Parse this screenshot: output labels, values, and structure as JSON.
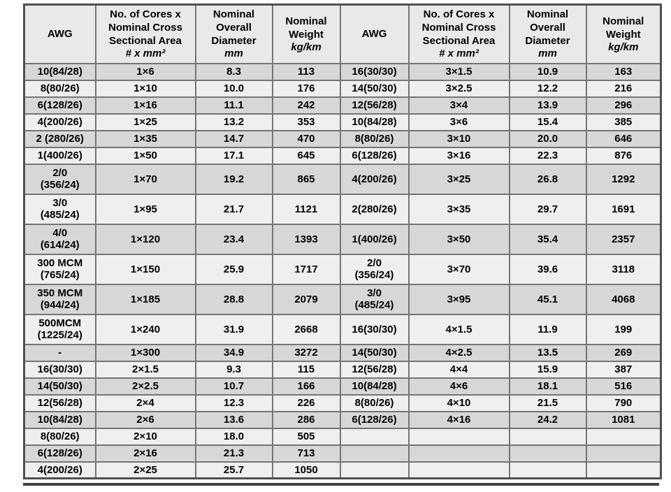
{
  "colors": {
    "header_bg": "#e9e9e9",
    "row_odd": "#d7d7d7",
    "row_even": "#efefef",
    "grid_line": "#757575",
    "outer_border": "#4f4f4f",
    "bottom_rule": "#424242",
    "text": "#000000"
  },
  "table": {
    "headers": [
      {
        "title": "AWG",
        "unit": ""
      },
      {
        "title": "No. of Cores x\nNominal Cross\nSectional Area",
        "unit": "# x mm²"
      },
      {
        "title": "Nominal\nOverall\nDiameter",
        "unit": "mm"
      },
      {
        "title": "Nominal\nWeight",
        "unit": "kg/km"
      },
      {
        "title": "AWG",
        "unit": ""
      },
      {
        "title": "No. of Cores x\nNominal Cross\nSectional Area",
        "unit": "# x mm²"
      },
      {
        "title": "Nominal\nOverall\nDiameter",
        "unit": "mm"
      },
      {
        "title": "Nominal\nWeight",
        "unit": "kg/km"
      }
    ],
    "rows": [
      {
        "tall": false,
        "cells": [
          "10(84/28)",
          "1×6",
          "8.3",
          "113",
          "16(30/30)",
          "3×1.5",
          "10.9",
          "163"
        ]
      },
      {
        "tall": false,
        "cells": [
          "8(80/26)",
          "1×10",
          "10.0",
          "176",
          "14(50/30)",
          "3×2.5",
          "12.2",
          "216"
        ]
      },
      {
        "tall": false,
        "cells": [
          "6(128/26)",
          "1×16",
          "11.1",
          "242",
          "12(56/28)",
          "3×4",
          "13.9",
          "296"
        ]
      },
      {
        "tall": false,
        "cells": [
          "4(200/26)",
          "1×25",
          "13.2",
          "353",
          "10(84/28)",
          "3×6",
          "15.4",
          "385"
        ]
      },
      {
        "tall": false,
        "cells": [
          "2 (280/26)",
          "1×35",
          "14.7",
          "470",
          "8(80/26)",
          "3×10",
          "20.0",
          "646"
        ]
      },
      {
        "tall": false,
        "cells": [
          "1(400/26)",
          "1×50",
          "17.1",
          "645",
          "6(128/26)",
          "3×16",
          "22.3",
          "876"
        ]
      },
      {
        "tall": true,
        "cells": [
          "2/0\n(356/24)",
          "1×70",
          "19.2",
          "865",
          "4(200/26)",
          "3×25",
          "26.8",
          "1292"
        ]
      },
      {
        "tall": true,
        "cells": [
          "3/0\n(485/24)",
          "1×95",
          "21.7",
          "1121",
          "2(280/26)",
          "3×35",
          "29.7",
          "1691"
        ]
      },
      {
        "tall": true,
        "cells": [
          "4/0\n(614/24)",
          "1×120",
          "23.4",
          "1393",
          "1(400/26)",
          "3×50",
          "35.4",
          "2357"
        ]
      },
      {
        "tall": true,
        "cells": [
          "300 MCM\n(765/24)",
          "1×150",
          "25.9",
          "1717",
          "2/0\n(356/24)",
          "3×70",
          "39.6",
          "3118"
        ]
      },
      {
        "tall": true,
        "cells": [
          "350 MCM\n(944/24)",
          "1×185",
          "28.8",
          "2079",
          "3/0\n(485/24)",
          "3×95",
          "45.1",
          "4068"
        ]
      },
      {
        "tall": true,
        "cells": [
          "500MCM\n(1225/24)",
          "1×240",
          "31.9",
          "2668",
          "16(30/30)",
          "4×1.5",
          "11.9",
          "199"
        ]
      },
      {
        "tall": false,
        "cells": [
          "-",
          "1×300",
          "34.9",
          "3272",
          "14(50/30)",
          "4×2.5",
          "13.5",
          "269"
        ]
      },
      {
        "tall": false,
        "cells": [
          "16(30/30)",
          "2×1.5",
          "9.3",
          "115",
          "12(56/28)",
          "4×4",
          "15.9",
          "387"
        ]
      },
      {
        "tall": false,
        "cells": [
          "14(50/30)",
          "2×2.5",
          "10.7",
          "166",
          "10(84/28)",
          "4×6",
          "18.1",
          "516"
        ]
      },
      {
        "tall": false,
        "cells": [
          "12(56/28)",
          "2×4",
          "12.3",
          "226",
          "8(80/26)",
          "4×10",
          "21.5",
          "790"
        ]
      },
      {
        "tall": false,
        "cells": [
          "10(84/28)",
          "2×6",
          "13.6",
          "286",
          "6(128/26)",
          "4×16",
          "24.2",
          "1081"
        ]
      },
      {
        "tall": false,
        "cells": [
          "8(80/26)",
          "2×10",
          "18.0",
          "505",
          "",
          "",
          "",
          ""
        ]
      },
      {
        "tall": false,
        "cells": [
          "6(128/26)",
          "2×16",
          "21.3",
          "713",
          "",
          "",
          "",
          ""
        ]
      },
      {
        "tall": false,
        "cells": [
          "4(200/26)",
          "2×25",
          "25.7",
          "1050",
          "",
          "",
          "",
          ""
        ]
      }
    ]
  }
}
